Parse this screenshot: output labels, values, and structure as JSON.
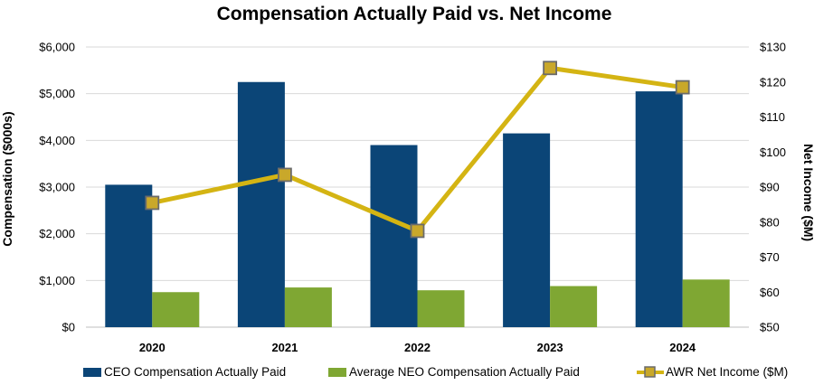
{
  "chart_data": {
    "type": "bar",
    "title": "Compensation Actually Paid vs. Net Income",
    "categories": [
      "2020",
      "2021",
      "2022",
      "2023",
      "2024"
    ],
    "ylabel": "Compensation ($000s)",
    "y2label": "Net Income ($M)",
    "ylim": [
      0,
      6000
    ],
    "y2lim": [
      50,
      130
    ],
    "y_ticks": [
      "$0",
      "$1,000",
      "$2,000",
      "$3,000",
      "$4,000",
      "$5,000",
      "$6,000"
    ],
    "y2_ticks": [
      "$50",
      "$60",
      "$70",
      "$80",
      "$90",
      "$100",
      "$110",
      "$120",
      "$130"
    ],
    "grid": true,
    "legend_position": "bottom",
    "series": [
      {
        "name": "CEO Compensation Actually Paid",
        "type": "bar",
        "axis": "left",
        "color": "#0b4577",
        "values": [
          3050,
          5250,
          3900,
          4150,
          5050
        ]
      },
      {
        "name": "Average NEO Compensation Actually Paid",
        "type": "bar",
        "axis": "left",
        "color": "#7fa733",
        "values": [
          750,
          850,
          790,
          880,
          1020
        ]
      },
      {
        "name": "AWR Net Income ($M)",
        "type": "line",
        "axis": "right",
        "color": "#d4b413",
        "marker_color": "#c9a82a",
        "marker_edge": "#6b6b6b",
        "values": [
          85.5,
          93.5,
          77.5,
          124,
          118.5
        ]
      }
    ]
  }
}
